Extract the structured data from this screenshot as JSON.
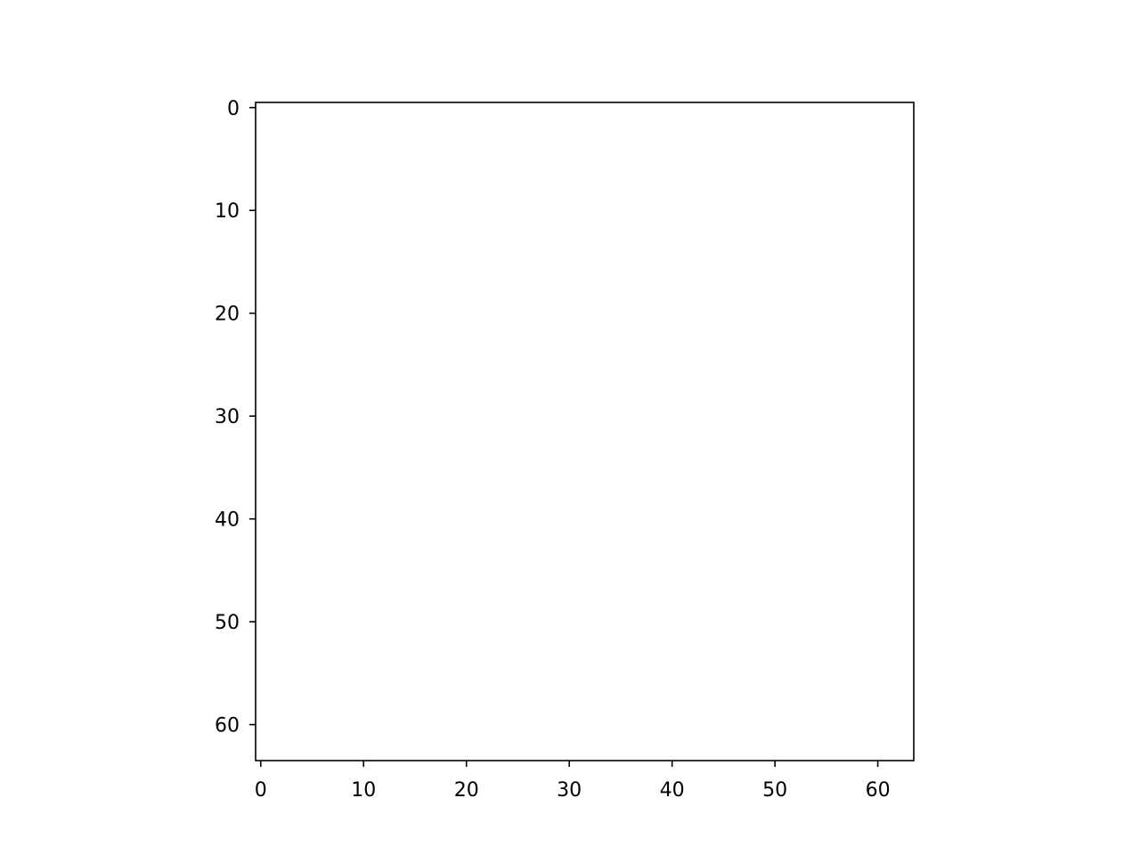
{
  "chart_data": {
    "type": "heatmap",
    "title": "",
    "xlabel": "",
    "ylabel": "",
    "image_size": [
      64,
      64
    ],
    "xlim": [
      -0.5,
      63.5
    ],
    "ylim": [
      63.5,
      -0.5
    ],
    "y_inverted": true,
    "x_ticks": [
      0,
      10,
      20,
      30,
      40,
      50,
      60
    ],
    "x_tick_labels": [
      "0",
      "10",
      "20",
      "30",
      "40",
      "50",
      "60"
    ],
    "y_ticks": [
      0,
      10,
      20,
      30,
      40,
      50,
      60
    ],
    "y_tick_labels": [
      "0",
      "10",
      "20",
      "30",
      "40",
      "50",
      "60"
    ],
    "grid": false,
    "legend": "none",
    "colors": {
      "sky_top_left": "#2074ee",
      "sky": "#2a9ef0",
      "sky_light": "#56b6f2",
      "cloud": "#cfe0f6",
      "petal_light": "#f2b3df",
      "petal_pink": "#ee7cc8",
      "petal_magenta": "#e21f9c",
      "petal_deep": "#b81a78",
      "stem_olive": "#a8a65a",
      "stem_dark": "#3a2616",
      "pistil_yellow": "#d6cf33"
    }
  }
}
